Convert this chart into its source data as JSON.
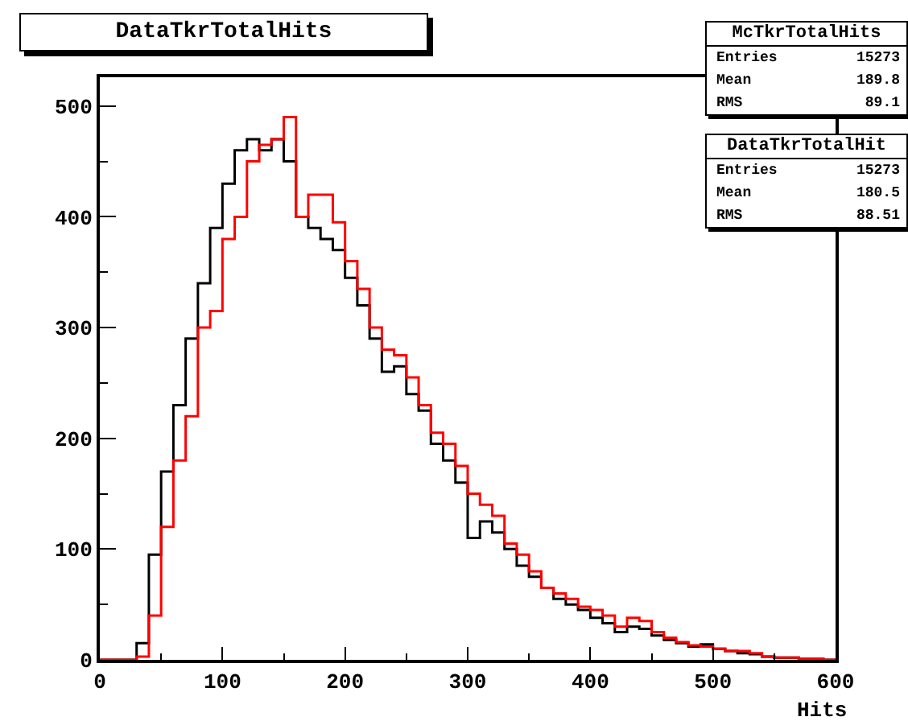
{
  "chart_data": {
    "type": "histogram",
    "title": "DataTkrTotalHits",
    "xlabel": "Hits",
    "bins": [
      0,
      10,
      20,
      30,
      40,
      50,
      60,
      70,
      80,
      90,
      100,
      110,
      120,
      130,
      140,
      150,
      160,
      170,
      180,
      190,
      200,
      210,
      220,
      230,
      240,
      250,
      260,
      270,
      280,
      290,
      300,
      310,
      320,
      330,
      340,
      350,
      360,
      370,
      380,
      390,
      400,
      410,
      420,
      430,
      440,
      450,
      460,
      470,
      480,
      490,
      500,
      510,
      520,
      530,
      540,
      550,
      560,
      570,
      580,
      590,
      600
    ],
    "series": [
      {
        "color": "#000000",
        "values": [
          0,
          0,
          0,
          15,
          95,
          170,
          230,
          290,
          340,
          390,
          430,
          460,
          470,
          460,
          470,
          450,
          400,
          390,
          380,
          370,
          345,
          320,
          290,
          260,
          265,
          240,
          225,
          195,
          180,
          160,
          110,
          125,
          115,
          100,
          85,
          75,
          65,
          55,
          50,
          45,
          38,
          33,
          25,
          30,
          28,
          22,
          18,
          15,
          12,
          14,
          10,
          8,
          6,
          5,
          3,
          2,
          2,
          1,
          1,
          0
        ]
      },
      {
        "color": "#ff0000",
        "values": [
          0,
          0,
          0,
          3,
          40,
          120,
          180,
          220,
          300,
          315,
          380,
          400,
          450,
          465,
          470,
          490,
          400,
          420,
          420,
          395,
          360,
          335,
          300,
          280,
          275,
          255,
          230,
          205,
          195,
          175,
          150,
          140,
          130,
          105,
          95,
          80,
          65,
          60,
          55,
          48,
          45,
          40,
          30,
          38,
          35,
          25,
          20,
          16,
          13,
          12,
          10,
          8,
          8,
          6,
          3,
          2,
          2,
          1,
          1,
          0
        ]
      }
    ],
    "xlim": [
      0,
      600
    ],
    "ylim": [
      0,
      526
    ],
    "xticks": [
      0,
      100,
      200,
      300,
      400,
      500,
      600
    ],
    "yticks": [
      0,
      100,
      200,
      300,
      400,
      500
    ],
    "grid": false,
    "annotations": [
      "McTkrTotalHits",
      "Entries",
      "15273",
      "Mean",
      "189.8",
      "RMS",
      "89.1",
      "DataTkrTotalHit",
      "Entries",
      "15273",
      "Mean",
      "180.5",
      "RMS",
      "88.51"
    ]
  }
}
